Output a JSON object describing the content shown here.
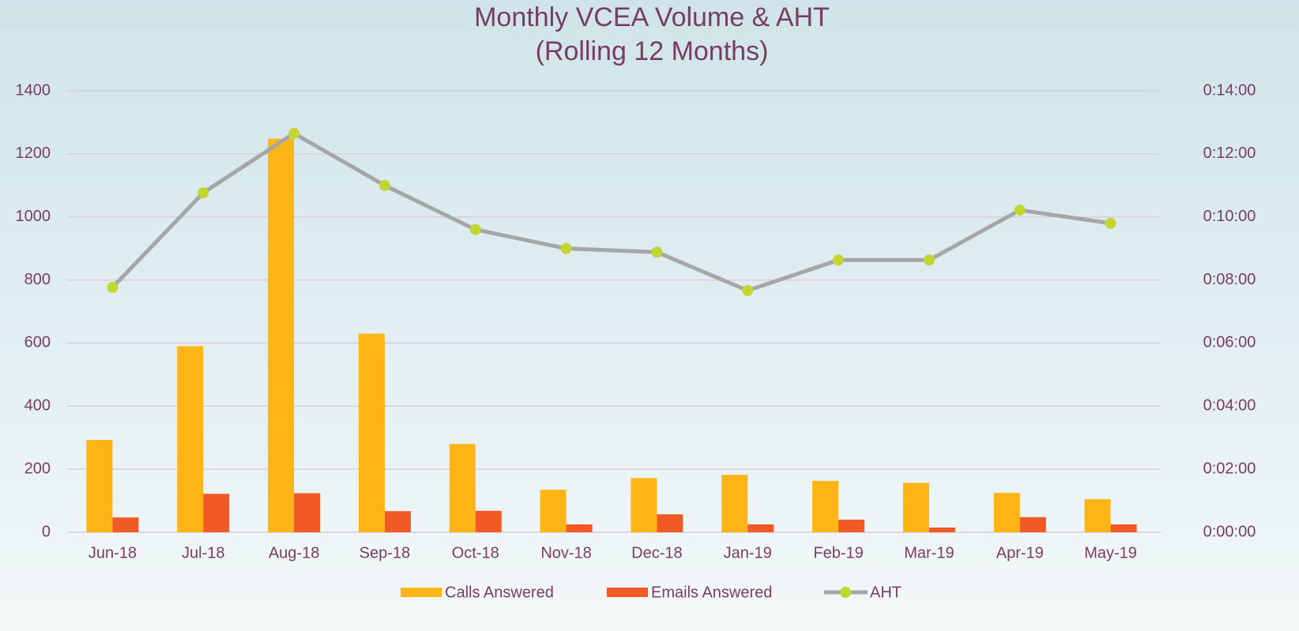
{
  "chart_data": {
    "type": "bar",
    "title": "Monthly VCEA Volume & AHT",
    "subtitle": "(Rolling 12 Months)",
    "categories": [
      "Jun-18",
      "Jul-18",
      "Aug-18",
      "Sep-18",
      "Oct-18",
      "Nov-18",
      "Dec-18",
      "Jan-19",
      "Feb-19",
      "Mar-19",
      "Apr-19",
      "May-19"
    ],
    "series": [
      {
        "name": "Calls Answered",
        "type": "bar",
        "color": "#fdb515",
        "values": [
          293,
          590,
          1248,
          630,
          280,
          135,
          172,
          182,
          163,
          157,
          125,
          105
        ]
      },
      {
        "name": "Emails Answered",
        "type": "bar",
        "color": "#f15a24",
        "values": [
          47,
          122,
          124,
          67,
          68,
          25,
          57,
          25,
          40,
          15,
          48,
          25
        ]
      },
      {
        "name": "AHT",
        "type": "line",
        "axis": "y2",
        "color": "#a6a6a6",
        "marker_color": "#c2d530",
        "values": [
          466,
          646,
          759,
          660,
          576,
          540,
          533,
          460,
          518,
          518,
          613,
          588
        ]
      }
    ],
    "ylim": [
      0,
      1400
    ],
    "yticks": [
      0,
      200,
      400,
      600,
      800,
      1000,
      1200,
      1400
    ],
    "y2lim": [
      0,
      840
    ],
    "y2ticks": [
      {
        "value": 0,
        "label": "0:00:00"
      },
      {
        "value": 120,
        "label": "0:02:00"
      },
      {
        "value": 240,
        "label": "0:04:00"
      },
      {
        "value": 360,
        "label": "0:06:00"
      },
      {
        "value": 480,
        "label": "0:08:00"
      },
      {
        "value": 600,
        "label": "0:10:00"
      },
      {
        "value": 720,
        "label": "0:12:00"
      },
      {
        "value": 840,
        "label": "0:14:00"
      }
    ],
    "grid": true,
    "legend": "bottom"
  }
}
